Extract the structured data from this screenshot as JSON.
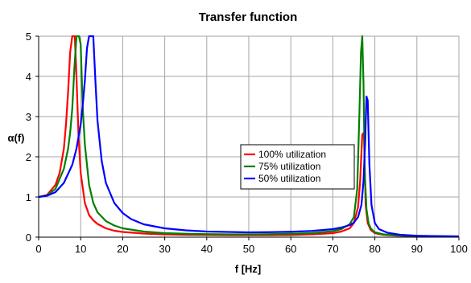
{
  "chart_data": {
    "type": "line",
    "title": "Transfer function",
    "xlabel": "f [Hz]",
    "ylabel": "α(f)",
    "xlim": [
      0,
      100
    ],
    "ylim": [
      0,
      5
    ],
    "xticks": [
      "0",
      "10",
      "20",
      "30",
      "40",
      "50",
      "60",
      "70",
      "80",
      "90",
      "100"
    ],
    "yticks": [
      "0",
      "1",
      "2",
      "3",
      "4",
      "5"
    ],
    "grid": true,
    "legend_position": "center-right",
    "series": [
      {
        "name": "100% utilization",
        "color": "#ff0000",
        "x": [
          0,
          2,
          4,
          5,
          6,
          6.5,
          7,
          7.5,
          8,
          8.3,
          8.6,
          9,
          9.5,
          10,
          11,
          12,
          13,
          14,
          16,
          18,
          20,
          25,
          30,
          35,
          40,
          45,
          50,
          55,
          60,
          65,
          70,
          72,
          74,
          75,
          76,
          76.5,
          77,
          77.4,
          77.8,
          78.3,
          79,
          80,
          82,
          85,
          90,
          95,
          100
        ],
        "y": [
          1.0,
          1.05,
          1.3,
          1.6,
          2.2,
          2.8,
          3.6,
          4.6,
          5.0,
          5.0,
          5.0,
          4.0,
          2.5,
          1.6,
          0.85,
          0.55,
          0.42,
          0.33,
          0.22,
          0.16,
          0.13,
          0.09,
          0.07,
          0.06,
          0.055,
          0.05,
          0.05,
          0.05,
          0.055,
          0.07,
          0.1,
          0.14,
          0.22,
          0.35,
          0.75,
          1.4,
          2.55,
          2.6,
          0.8,
          0.35,
          0.18,
          0.1,
          0.06,
          0.04,
          0.025,
          0.02,
          0.015
        ]
      },
      {
        "name": "75% utilization",
        "color": "#008000",
        "x": [
          0,
          2,
          4,
          6,
          7,
          7.5,
          8,
          8.5,
          9,
          9.3,
          9.6,
          10,
          10.5,
          11,
          12,
          13,
          14,
          16,
          18,
          20,
          25,
          30,
          35,
          40,
          45,
          50,
          55,
          60,
          65,
          70,
          72,
          74,
          75,
          75.8,
          76.3,
          76.7,
          77.0,
          77.3,
          77.6,
          78,
          78.5,
          79,
          80,
          82,
          85,
          90,
          95,
          100
        ],
        "y": [
          1.0,
          1.04,
          1.2,
          1.7,
          2.2,
          2.6,
          3.2,
          4.2,
          5.0,
          5.0,
          5.0,
          4.8,
          3.2,
          2.3,
          1.3,
          0.85,
          0.62,
          0.4,
          0.29,
          0.22,
          0.14,
          0.1,
          0.085,
          0.075,
          0.07,
          0.07,
          0.075,
          0.085,
          0.1,
          0.15,
          0.2,
          0.32,
          0.5,
          1.2,
          3.0,
          4.6,
          5.0,
          3.8,
          1.6,
          0.7,
          0.35,
          0.22,
          0.12,
          0.07,
          0.045,
          0.03,
          0.022,
          0.018
        ]
      },
      {
        "name": "50% utilization",
        "color": "#0000ff",
        "x": [
          0,
          2,
          4,
          6,
          8,
          9,
          10,
          10.5,
          11,
          11.5,
          12,
          12.5,
          13,
          13.5,
          14,
          15,
          16,
          18,
          20,
          22,
          25,
          30,
          35,
          40,
          45,
          50,
          55,
          60,
          65,
          70,
          72,
          74,
          75,
          76,
          76.8,
          77.3,
          77.7,
          78.0,
          78.3,
          78.7,
          79.2,
          80,
          81,
          83,
          86,
          90,
          95,
          100
        ],
        "y": [
          1.0,
          1.03,
          1.12,
          1.35,
          1.8,
          2.2,
          2.8,
          3.3,
          3.9,
          4.7,
          5.0,
          5.0,
          5.0,
          3.9,
          2.9,
          1.9,
          1.35,
          0.85,
          0.6,
          0.45,
          0.32,
          0.22,
          0.17,
          0.14,
          0.13,
          0.12,
          0.125,
          0.135,
          0.155,
          0.2,
          0.24,
          0.3,
          0.36,
          0.5,
          0.8,
          1.4,
          2.4,
          3.5,
          3.4,
          1.8,
          0.8,
          0.35,
          0.2,
          0.11,
          0.06,
          0.035,
          0.025,
          0.02
        ]
      }
    ]
  }
}
